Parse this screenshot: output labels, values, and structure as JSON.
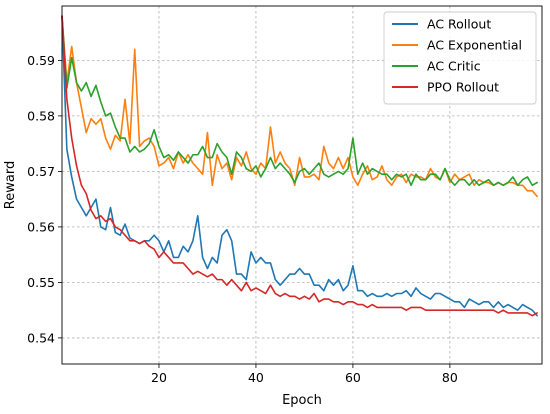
{
  "chart_data": {
    "type": "line",
    "xlabel": "Epoch",
    "ylabel": "Reward",
    "xlim": [
      0,
      99
    ],
    "ylim": [
      0.5353,
      0.5998
    ],
    "xticks": [
      20,
      40,
      60,
      80
    ],
    "xtick_labels": [
      "20",
      "40",
      "60",
      "80"
    ],
    "yticks": [
      0.54,
      0.55,
      0.56,
      0.57,
      0.58,
      0.59
    ],
    "ytick_labels": [
      "0.54",
      "0.55",
      "0.56",
      "0.57",
      "0.58",
      "0.59"
    ],
    "grid": true,
    "legend_position": "top-right",
    "series": [
      {
        "name": "AC Rollout",
        "color": "#1f77b4",
        "values": [
          0.598,
          0.574,
          0.569,
          0.565,
          0.5635,
          0.562,
          0.5635,
          0.565,
          0.56,
          0.5595,
          0.5635,
          0.559,
          0.5585,
          0.5605,
          0.558,
          0.5575,
          0.557,
          0.5575,
          0.5575,
          0.5585,
          0.5575,
          0.5555,
          0.5575,
          0.5545,
          0.5545,
          0.5565,
          0.5555,
          0.5575,
          0.562,
          0.5545,
          0.5525,
          0.5545,
          0.5535,
          0.5585,
          0.5595,
          0.5575,
          0.5515,
          0.5515,
          0.5505,
          0.5555,
          0.5535,
          0.5545,
          0.5535,
          0.5535,
          0.5505,
          0.5495,
          0.5505,
          0.5515,
          0.5515,
          0.5525,
          0.5515,
          0.5515,
          0.5495,
          0.5495,
          0.5485,
          0.5505,
          0.5495,
          0.5505,
          0.5485,
          0.5495,
          0.553,
          0.5485,
          0.5485,
          0.5475,
          0.548,
          0.5475,
          0.5475,
          0.548,
          0.5475,
          0.548,
          0.548,
          0.5485,
          0.5475,
          0.549,
          0.548,
          0.5475,
          0.547,
          0.548,
          0.548,
          0.5475,
          0.547,
          0.5465,
          0.5465,
          0.5455,
          0.547,
          0.5465,
          0.546,
          0.5465,
          0.5465,
          0.5455,
          0.5465,
          0.5455,
          0.546,
          0.5455,
          0.545,
          0.546,
          0.5455,
          0.545,
          0.544
        ]
      },
      {
        "name": "AC Exponential",
        "color": "#ff7f0e",
        "values": [
          0.598,
          0.586,
          0.5925,
          0.586,
          0.5815,
          0.577,
          0.5795,
          0.5785,
          0.5795,
          0.576,
          0.574,
          0.5765,
          0.5755,
          0.583,
          0.575,
          0.592,
          0.5745,
          0.5755,
          0.576,
          0.5745,
          0.571,
          0.5715,
          0.5725,
          0.5705,
          0.5735,
          0.5715,
          0.573,
          0.5715,
          0.5705,
          0.5695,
          0.577,
          0.5675,
          0.573,
          0.5705,
          0.5715,
          0.5685,
          0.5725,
          0.571,
          0.5735,
          0.5705,
          0.5695,
          0.5715,
          0.5705,
          0.578,
          0.5715,
          0.5735,
          0.5715,
          0.5705,
          0.5675,
          0.5725,
          0.569,
          0.569,
          0.5695,
          0.5685,
          0.5745,
          0.5715,
          0.5705,
          0.5725,
          0.5705,
          0.5725,
          0.569,
          0.5675,
          0.5695,
          0.571,
          0.5685,
          0.569,
          0.571,
          0.5685,
          0.5675,
          0.569,
          0.5695,
          0.568,
          0.5695,
          0.569,
          0.569,
          0.5685,
          0.5705,
          0.569,
          0.5685,
          0.5705,
          0.568,
          0.5695,
          0.5685,
          0.569,
          0.5695,
          0.5675,
          0.5685,
          0.568,
          0.568,
          0.5675,
          0.568,
          0.5675,
          0.568,
          0.568,
          0.5675,
          0.5675,
          0.5665,
          0.5665,
          0.5655
        ]
      },
      {
        "name": "AC Critic",
        "color": "#2ca02c",
        "values": [
          0.598,
          0.585,
          0.5905,
          0.586,
          0.5845,
          0.586,
          0.5835,
          0.5855,
          0.5825,
          0.58,
          0.5805,
          0.578,
          0.576,
          0.576,
          0.5735,
          0.5745,
          0.5735,
          0.574,
          0.575,
          0.5775,
          0.5745,
          0.5725,
          0.573,
          0.572,
          0.5735,
          0.5725,
          0.5715,
          0.573,
          0.573,
          0.5745,
          0.5725,
          0.5725,
          0.575,
          0.5735,
          0.5725,
          0.5695,
          0.5735,
          0.5725,
          0.5705,
          0.57,
          0.571,
          0.569,
          0.5705,
          0.5725,
          0.5705,
          0.5715,
          0.5705,
          0.5695,
          0.568,
          0.57,
          0.5705,
          0.5695,
          0.5705,
          0.5715,
          0.5695,
          0.569,
          0.5695,
          0.57,
          0.5695,
          0.5705,
          0.576,
          0.5695,
          0.5715,
          0.5695,
          0.5705,
          0.57,
          0.5695,
          0.5695,
          0.5685,
          0.5695,
          0.569,
          0.5695,
          0.5675,
          0.5695,
          0.5685,
          0.5685,
          0.5695,
          0.5695,
          0.5685,
          0.5705,
          0.5685,
          0.5675,
          0.5685,
          0.5685,
          0.5675,
          0.5685,
          0.5675,
          0.568,
          0.5685,
          0.5675,
          0.568,
          0.5675,
          0.568,
          0.569,
          0.5675,
          0.5685,
          0.569,
          0.5675,
          0.568
        ]
      },
      {
        "name": "PPO Rollout",
        "color": "#d62728",
        "values": [
          0.598,
          0.583,
          0.576,
          0.571,
          0.5675,
          0.566,
          0.563,
          0.5615,
          0.562,
          0.561,
          0.5615,
          0.56,
          0.5595,
          0.5585,
          0.5575,
          0.5575,
          0.557,
          0.5575,
          0.5565,
          0.556,
          0.5545,
          0.5555,
          0.5545,
          0.5535,
          0.5535,
          0.5535,
          0.5525,
          0.5515,
          0.552,
          0.5515,
          0.551,
          0.5515,
          0.5505,
          0.5505,
          0.5495,
          0.5505,
          0.5495,
          0.5485,
          0.55,
          0.5485,
          0.549,
          0.5485,
          0.548,
          0.5495,
          0.548,
          0.5475,
          0.548,
          0.5475,
          0.5475,
          0.547,
          0.5475,
          0.547,
          0.548,
          0.5465,
          0.547,
          0.547,
          0.5465,
          0.5465,
          0.546,
          0.5465,
          0.5465,
          0.546,
          0.546,
          0.5455,
          0.546,
          0.5455,
          0.5455,
          0.5455,
          0.5455,
          0.5455,
          0.5455,
          0.545,
          0.5455,
          0.5455,
          0.5455,
          0.545,
          0.545,
          0.545,
          0.545,
          0.545,
          0.545,
          0.545,
          0.545,
          0.545,
          0.545,
          0.545,
          0.545,
          0.545,
          0.545,
          0.545,
          0.5445,
          0.545,
          0.5445,
          0.5445,
          0.5445,
          0.5445,
          0.5445,
          0.544,
          0.5445
        ]
      }
    ]
  }
}
